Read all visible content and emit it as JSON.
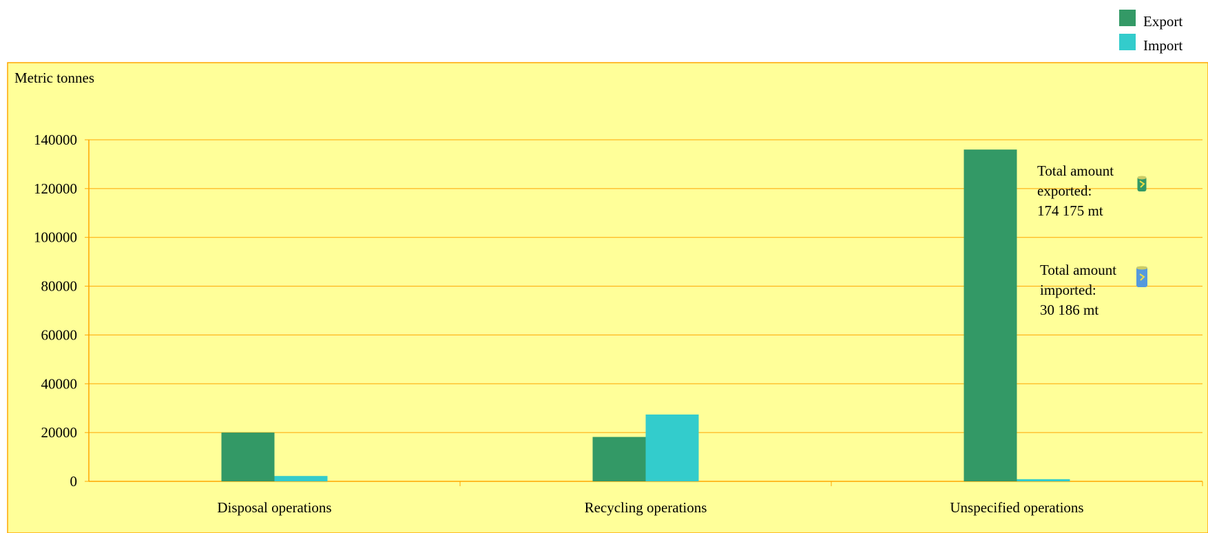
{
  "chart_data": {
    "type": "bar",
    "title": "",
    "ylabel": "Metric tonnes",
    "xlabel": "",
    "categories": [
      "Disposal operations",
      "Recycling operations",
      "Unspecified operations"
    ],
    "series": [
      {
        "name": "Export",
        "color": "#339966",
        "values": [
          20000,
          18200,
          136000
        ]
      },
      {
        "name": "Import",
        "color": "#33CCCC",
        "values": [
          2200,
          27400,
          900
        ]
      }
    ],
    "ylim": [
      0,
      140000
    ],
    "yticks": [
      0,
      20000,
      40000,
      60000,
      80000,
      100000,
      120000,
      140000
    ],
    "grid": true,
    "legend_position": "top-right",
    "plot_background": "#FFFF99",
    "grid_color": "#FFA500",
    "annotations": [
      {
        "lines": [
          "Total amount",
          "exported:",
          "174 175 mt"
        ],
        "icon": "export-barrel-icon",
        "icon_color": "#339966"
      },
      {
        "lines": [
          "Total amount",
          "imported:",
          "30 186 mt"
        ],
        "icon": "import-barrel-icon",
        "icon_color": "#5599DD"
      }
    ]
  }
}
